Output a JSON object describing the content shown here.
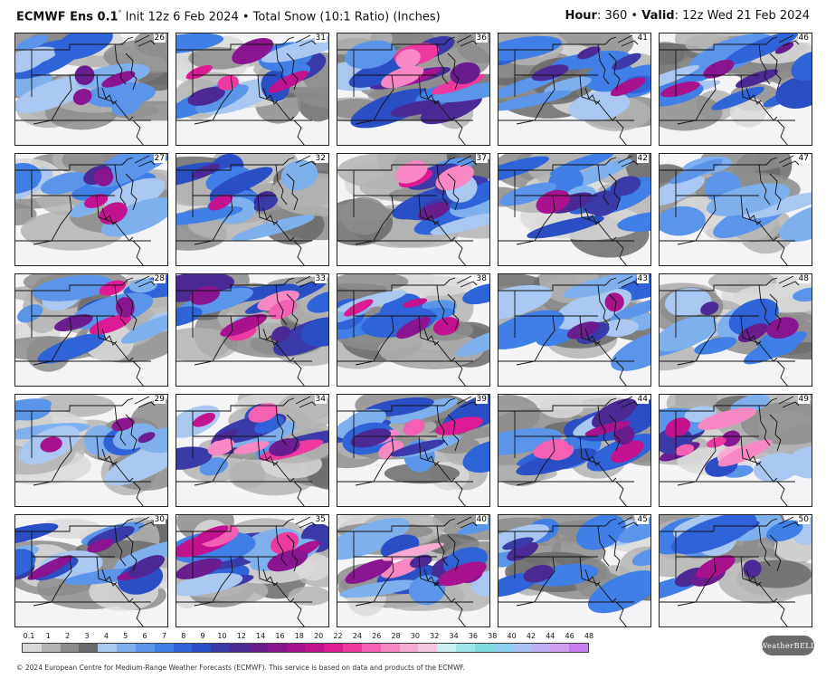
{
  "header": {
    "model": "ECMWF Ens 0.1",
    "model_suffix": "°",
    "init_text": "Init 12z 6 Feb 2024 • Total Snow (10:1 Ratio) (Inches)",
    "hour_label": "Hour",
    "hour_value": ": 360 •",
    "valid_label": "Valid",
    "valid_value": ": 12z Wed 21 Feb 2024"
  },
  "panels": {
    "members": [
      [
        "26",
        "31",
        "36",
        "41",
        "46"
      ],
      [
        "27",
        "32",
        "37",
        "42",
        "47"
      ],
      [
        "28",
        "33",
        "38",
        "43",
        "48"
      ],
      [
        "29",
        "34",
        "39",
        "44",
        "49"
      ],
      [
        "30",
        "35",
        "40",
        "45",
        "50"
      ]
    ],
    "intensity": [
      [
        0.4,
        0.6,
        0.85,
        0.45,
        0.5
      ],
      [
        0.45,
        0.5,
        0.75,
        0.6,
        0.05
      ],
      [
        0.55,
        0.8,
        0.5,
        0.4,
        0.35
      ],
      [
        0.4,
        0.9,
        0.8,
        0.75,
        0.9
      ],
      [
        0.6,
        0.85,
        0.9,
        0.35,
        0.5
      ]
    ]
  },
  "colorbar": {
    "labels": [
      "0.1",
      "1",
      "2",
      "3",
      "4",
      "5",
      "6",
      "7",
      "8",
      "9",
      "10",
      "12",
      "14",
      "16",
      "18",
      "20",
      "22",
      "24",
      "26",
      "28",
      "30",
      "32",
      "34",
      "36",
      "38",
      "40",
      "42",
      "44",
      "46",
      "48"
    ],
    "colors": [
      "#d9d9d9",
      "#b3b3b3",
      "#8c8c8c",
      "#6a6a6a",
      "#a9c7f0",
      "#7fb0ee",
      "#5b95ea",
      "#3f7fe6",
      "#2f64d8",
      "#2a4fc4",
      "#3a3aa8",
      "#4b2a96",
      "#6a1d8e",
      "#8a1590",
      "#a8128f",
      "#c31290",
      "#dc1a94",
      "#ee3aa0",
      "#f460b2",
      "#f788c4",
      "#f9aad2",
      "#f6c6e0",
      "#c8f0f0",
      "#9de6ea",
      "#7fdcdc",
      "#8ed0f0",
      "#a9c0f3",
      "#bfaef3",
      "#d09cf2",
      "#c77cf0"
    ]
  },
  "logo": {
    "text": "WeatherBELL"
  },
  "footer": {
    "text": "© 2024 European Centre for Medium-Range Weather Forecasts (ECMWF). This service is based on data and products of the ECMWF."
  }
}
